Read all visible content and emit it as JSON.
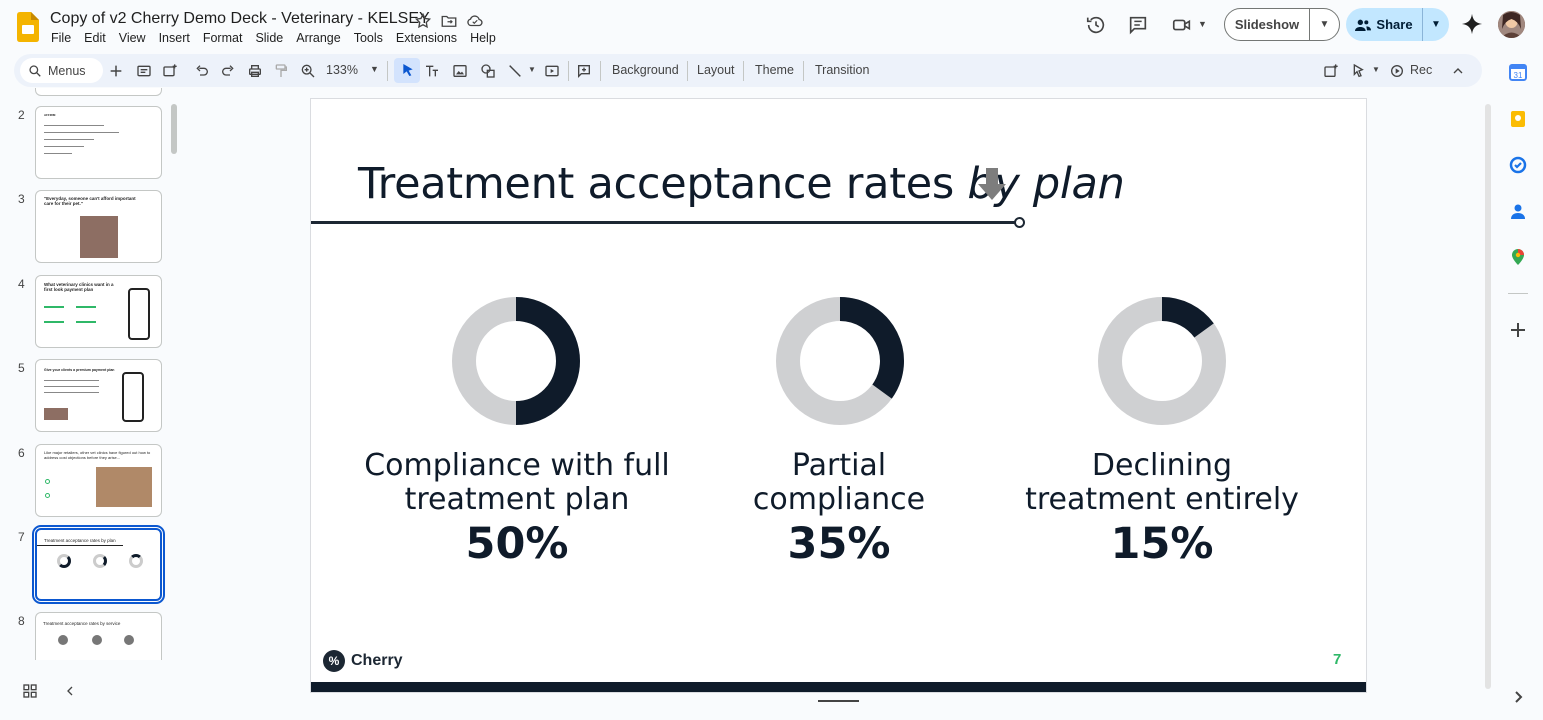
{
  "window": {
    "doc_title": "Copy of v2 Cherry Demo Deck - Veterinary - KELSEY",
    "menu": [
      "File",
      "Edit",
      "View",
      "Insert",
      "Format",
      "Slide",
      "Arrange",
      "Tools",
      "Extensions",
      "Help"
    ]
  },
  "header": {
    "slideshow_label": "Slideshow",
    "share_label": "Share"
  },
  "toolbar": {
    "search_label": "Menus",
    "zoom": "133%",
    "background_label": "Background",
    "layout_label": "Layout",
    "theme_label": "Theme",
    "transition_label": "Transition",
    "rec_label": "Rec"
  },
  "filmstrip": {
    "slides": [
      {
        "num": "2",
        "title": "AFFIRM"
      },
      {
        "num": "3",
        "title": "\"Everyday, someone can't afford important care for their pet.\""
      },
      {
        "num": "4",
        "title": "What veterinary clinics want in a first look payment plan"
      },
      {
        "num": "5",
        "title": "Give your clients a premium payment plan"
      },
      {
        "num": "6",
        "title": "Like major retailers, other vet clinics have figured out how to address cost objections before they arise..."
      },
      {
        "num": "7",
        "title": "Treatment acceptance rates by plan"
      },
      {
        "num": "8",
        "title": "Treatment acceptance rates by service"
      }
    ],
    "selected": "7"
  },
  "slide": {
    "title_regular": "Treatment acceptance rates ",
    "title_italic": "by plan",
    "brand": "Cherry",
    "page_number": "7",
    "colors": {
      "dark": "#0f1b2a",
      "ring": "#cfd0d2",
      "accent": "#2fb868"
    },
    "metrics": [
      {
        "line1": "Compliance with full",
        "line2": "treatment plan",
        "value": "50%",
        "fraction": 0.5
      },
      {
        "line1": "Partial",
        "line2": "compliance",
        "value": "35%",
        "fraction": 0.35
      },
      {
        "line1": "Declining",
        "line2": "treatment entirely",
        "value": "15%",
        "fraction": 0.15
      }
    ]
  }
}
